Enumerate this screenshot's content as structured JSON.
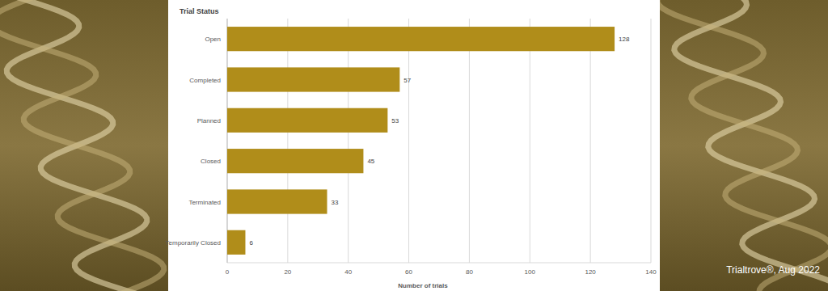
{
  "chart_data": {
    "type": "bar",
    "orientation": "horizontal",
    "title": "Trial Status",
    "xlabel": "Number of trials",
    "categories": [
      "Open",
      "Completed",
      "Planned",
      "Closed",
      "Terminated",
      "Temporarily Closed"
    ],
    "values": [
      128,
      57,
      53,
      45,
      33,
      6
    ],
    "color": "#b08d1a",
    "xlim": [
      0,
      140
    ],
    "xticks": [
      0,
      20,
      40,
      60,
      80,
      100,
      120,
      140
    ],
    "grid": true,
    "data_labels": true,
    "annotations": [
      "Trialtrove®, Aug 2022"
    ]
  }
}
